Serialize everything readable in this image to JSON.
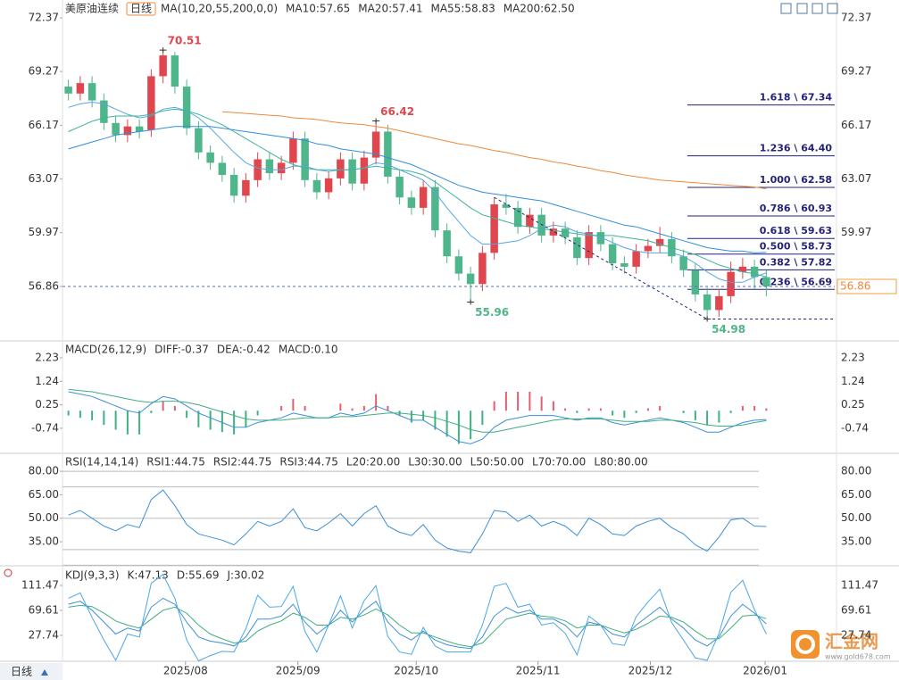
{
  "chart_data": [
    {
      "type": "candlestick",
      "title": "美原油连续",
      "period": "日线",
      "indicator_label": "MA(10,20,55,200,0,0)",
      "xlim": [
        -0.5,
        59.5
      ],
      "xticks": [
        {
          "value": 9.9,
          "label": "2025/08"
        },
        {
          "value": 19.4,
          "label": "2025/09"
        },
        {
          "value": 29.4,
          "label": "2025/10"
        },
        {
          "value": 39.7,
          "label": "2025/11"
        },
        {
          "value": 49.2,
          "label": "2025/12"
        },
        {
          "value": 58.9,
          "label": "2026/01"
        }
      ],
      "ylim": [
        53.82,
        73.4
      ],
      "yticks": [
        72.37,
        69.27,
        66.17,
        63.07,
        59.97,
        56.86
      ],
      "up_color": "#e0464e",
      "down_color": "#4fb58a",
      "open": [
        68.4,
        68.0,
        68.6,
        67.6,
        66.3,
        65.6,
        66.1,
        65.9,
        69.0,
        70.2,
        68.4,
        66.0,
        64.6,
        64.0,
        63.3,
        62.1,
        63.0,
        64.2,
        63.4,
        64.0,
        65.4,
        63.0,
        62.3,
        63.1,
        64.2,
        62.8,
        64.3,
        65.8,
        63.2,
        62.0,
        61.4,
        62.6,
        60.1,
        58.6,
        57.6,
        57.0,
        58.8,
        61.6,
        61.4,
        60.3,
        61.0,
        59.8,
        60.2,
        59.7,
        58.5,
        60.0,
        59.3,
        58.2,
        58.0,
        58.9,
        59.2,
        59.6,
        58.6,
        57.8,
        56.4,
        55.5,
        56.3,
        57.7,
        58.0,
        57.4
      ],
      "high": [
        68.8,
        69.0,
        69.0,
        68.0,
        66.7,
        66.5,
        66.5,
        69.4,
        70.51,
        70.4,
        68.8,
        66.4,
        65.0,
        64.4,
        63.7,
        63.4,
        64.6,
        64.6,
        64.4,
        65.8,
        65.8,
        63.4,
        63.5,
        64.6,
        64.6,
        64.7,
        66.42,
        66.2,
        63.6,
        62.4,
        63.0,
        63.0,
        60.5,
        59.0,
        58.0,
        59.2,
        62.0,
        62.2,
        61.8,
        61.4,
        61.4,
        60.6,
        60.6,
        60.1,
        60.4,
        60.4,
        59.7,
        58.6,
        59.3,
        59.6,
        60.3,
        60.0,
        59.0,
        58.2,
        56.8,
        56.7,
        58.3,
        58.5,
        58.4,
        57.8
      ],
      "low": [
        67.6,
        67.6,
        67.2,
        65.9,
        65.2,
        65.2,
        65.4,
        65.5,
        68.6,
        68.0,
        65.6,
        64.2,
        63.6,
        62.9,
        61.7,
        61.7,
        62.6,
        63.0,
        63.0,
        63.6,
        62.6,
        61.9,
        61.9,
        62.7,
        62.4,
        62.4,
        63.9,
        62.8,
        61.6,
        61.0,
        61.0,
        59.7,
        58.2,
        57.2,
        55.96,
        56.6,
        58.4,
        61.0,
        59.9,
        59.9,
        59.4,
        59.4,
        59.3,
        58.1,
        58.1,
        58.9,
        57.8,
        57.6,
        57.6,
        58.5,
        58.8,
        58.2,
        57.4,
        56.0,
        54.98,
        55.1,
        55.9,
        57.3,
        56.7,
        56.3
      ],
      "close": [
        68.0,
        68.6,
        67.6,
        66.3,
        65.6,
        66.1,
        65.8,
        69.0,
        70.2,
        68.4,
        66.0,
        64.6,
        64.0,
        63.3,
        62.1,
        63.0,
        64.2,
        63.4,
        64.0,
        65.4,
        63.0,
        62.3,
        63.1,
        64.2,
        62.8,
        64.3,
        65.8,
        63.2,
        62.0,
        61.4,
        62.6,
        60.1,
        58.6,
        57.6,
        57.0,
        58.8,
        61.6,
        61.4,
        60.3,
        61.0,
        59.8,
        60.2,
        59.7,
        58.5,
        60.0,
        59.3,
        58.2,
        58.0,
        58.9,
        59.2,
        59.6,
        58.6,
        57.8,
        56.4,
        55.5,
        56.3,
        57.7,
        58.0,
        57.4,
        56.86
      ],
      "series": [
        {
          "name": "MA10:57.65",
          "color": "#58a6e0",
          "values": [
            67.2,
            67.4,
            67.5,
            67.4,
            67.1,
            66.8,
            66.6,
            66.7,
            67.1,
            67.2,
            67.0,
            66.6,
            66.0,
            65.3,
            64.6,
            64.0,
            63.7,
            63.6,
            63.6,
            63.8,
            63.8,
            63.6,
            63.5,
            63.6,
            63.6,
            63.7,
            64.0,
            63.9,
            63.6,
            63.3,
            63.0,
            62.3,
            61.4,
            60.6,
            59.8,
            59.3,
            59.3,
            59.4,
            59.5,
            59.8,
            60.2,
            60.4,
            60.3,
            60.0,
            59.9,
            59.7,
            59.4,
            59.1,
            58.9,
            58.8,
            58.8,
            58.8,
            58.6,
            58.2,
            57.7,
            57.3,
            57.1,
            57.1,
            57.4,
            57.65
          ]
        },
        {
          "name": "MA20:57.41",
          "color": "#3cb39a",
          "values": [
            65.8,
            66.1,
            66.4,
            66.6,
            66.7,
            66.7,
            66.7,
            66.8,
            67.0,
            67.1,
            67.0,
            66.8,
            66.5,
            66.2,
            65.8,
            65.4,
            65.0,
            64.6,
            64.2,
            63.9,
            63.7,
            63.6,
            63.6,
            63.6,
            63.6,
            63.7,
            63.8,
            63.7,
            63.6,
            63.5,
            63.3,
            62.9,
            62.4,
            61.9,
            61.4,
            61.0,
            60.8,
            60.6,
            60.4,
            60.3,
            60.2,
            60.1,
            60.0,
            59.9,
            59.8,
            59.8,
            59.8,
            59.7,
            59.6,
            59.5,
            59.3,
            59.1,
            58.9,
            58.7,
            58.4,
            58.1,
            57.9,
            57.7,
            57.6,
            57.41
          ]
        },
        {
          "name": "MA55:58.83",
          "color": "#2f8fe0",
          "values": [
            64.8,
            65.0,
            65.2,
            65.4,
            65.6,
            65.7,
            65.8,
            65.9,
            66.0,
            66.1,
            66.1,
            66.1,
            66.1,
            66.0,
            65.9,
            65.8,
            65.7,
            65.6,
            65.5,
            65.4,
            65.3,
            65.1,
            65.0,
            64.8,
            64.7,
            64.6,
            64.5,
            64.3,
            64.1,
            63.9,
            63.6,
            63.3,
            63.0,
            62.7,
            62.5,
            62.3,
            62.2,
            62.1,
            62.0,
            61.9,
            61.8,
            61.6,
            61.4,
            61.2,
            61.0,
            60.8,
            60.6,
            60.4,
            60.3,
            60.1,
            59.9,
            59.7,
            59.5,
            59.3,
            59.1,
            59.0,
            58.9,
            58.9,
            58.8,
            58.83
          ]
        },
        {
          "name": "MA200:62.50",
          "color": "#f0883a",
          "values": [
            null,
            null,
            null,
            null,
            null,
            null,
            null,
            null,
            null,
            null,
            null,
            null,
            null,
            66.95,
            66.9,
            66.85,
            66.8,
            66.75,
            66.7,
            66.6,
            66.55,
            66.5,
            66.4,
            66.3,
            66.25,
            66.2,
            66.1,
            66.0,
            65.85,
            65.7,
            65.55,
            65.4,
            65.25,
            65.1,
            65.0,
            64.85,
            64.7,
            64.6,
            64.45,
            64.3,
            64.2,
            64.05,
            63.95,
            63.8,
            63.7,
            63.55,
            63.45,
            63.3,
            63.2,
            63.1,
            63.0,
            62.95,
            62.9,
            62.85,
            62.8,
            62.75,
            62.7,
            62.65,
            62.6,
            62.5
          ]
        }
      ],
      "fib_color": "#23237a",
      "fib_levels": [
        {
          "label": "1.618 \\ 67.34",
          "value": 67.34
        },
        {
          "label": "1.236 \\ 64.40",
          "value": 64.4
        },
        {
          "label": "1.000 \\ 62.58",
          "value": 62.58
        },
        {
          "label": "0.786 \\ 60.93",
          "value": 60.93
        },
        {
          "label": "0.618 \\ 59.63",
          "value": 59.63
        },
        {
          "label": "0.500 \\ 58.73",
          "value": 58.73
        },
        {
          "label": "0.382 \\ 57.82",
          "value": 57.82
        },
        {
          "label": "0.236 \\ 56.69",
          "value": 56.69
        }
      ]
    },
    {
      "type": "macd",
      "title": "MACD(26,12,9)",
      "ylim": [
        -1.76,
        2.87
      ],
      "yticks": [
        2.23,
        1.24,
        0.25,
        -0.74
      ],
      "series": [
        {
          "name": "DIFF:-0.37",
          "color": "#3c8fd8",
          "values": [
            0.8,
            0.7,
            0.6,
            0.4,
            0.2,
            0.0,
            -0.1,
            0.3,
            0.6,
            0.5,
            0.2,
            -0.1,
            -0.3,
            -0.5,
            -0.7,
            -0.7,
            -0.5,
            -0.4,
            -0.3,
            -0.1,
            -0.2,
            -0.3,
            -0.3,
            -0.1,
            -0.2,
            -0.1,
            0.2,
            0.0,
            -0.2,
            -0.4,
            -0.4,
            -0.7,
            -1.0,
            -1.3,
            -1.4,
            -1.2,
            -0.7,
            -0.4,
            -0.3,
            -0.2,
            -0.2,
            -0.2,
            -0.3,
            -0.4,
            -0.3,
            -0.3,
            -0.5,
            -0.6,
            -0.5,
            -0.4,
            -0.3,
            -0.4,
            -0.5,
            -0.7,
            -0.9,
            -0.9,
            -0.7,
            -0.5,
            -0.4,
            -0.37
          ]
        },
        {
          "name": "DEA:-0.42",
          "color": "#3fae7f",
          "values": [
            0.9,
            0.85,
            0.8,
            0.7,
            0.6,
            0.5,
            0.4,
            0.35,
            0.4,
            0.4,
            0.35,
            0.25,
            0.1,
            -0.05,
            -0.2,
            -0.35,
            -0.4,
            -0.4,
            -0.4,
            -0.35,
            -0.3,
            -0.3,
            -0.3,
            -0.25,
            -0.25,
            -0.2,
            -0.15,
            -0.1,
            -0.1,
            -0.15,
            -0.2,
            -0.3,
            -0.45,
            -0.6,
            -0.8,
            -0.9,
            -0.9,
            -0.8,
            -0.7,
            -0.6,
            -0.5,
            -0.4,
            -0.35,
            -0.35,
            -0.35,
            -0.35,
            -0.4,
            -0.45,
            -0.45,
            -0.45,
            -0.4,
            -0.4,
            -0.45,
            -0.5,
            -0.6,
            -0.65,
            -0.65,
            -0.6,
            -0.5,
            -0.42
          ]
        }
      ],
      "histogram": {
        "name": "MACD:0.10",
        "color": "#3c8fd8",
        "up_color": "#e06070",
        "down_color": "#40b080",
        "values": [
          -0.2,
          -0.3,
          -0.4,
          -0.6,
          -0.8,
          -1.0,
          -1.0,
          -0.1,
          0.4,
          0.2,
          -0.3,
          -0.7,
          -0.8,
          -0.9,
          -1.0,
          -0.7,
          -0.2,
          0,
          0.2,
          0.5,
          0.2,
          0,
          0,
          0.3,
          0.1,
          0.2,
          0.7,
          0.2,
          -0.2,
          -0.5,
          -0.4,
          -0.8,
          -1.1,
          -1.4,
          -1.2,
          -0.6,
          0.4,
          0.8,
          0.8,
          0.8,
          0.6,
          0.4,
          0.1,
          -0.1,
          0.1,
          0.1,
          -0.2,
          -0.3,
          -0.1,
          0.1,
          0.2,
          0,
          -0.1,
          -0.4,
          -0.6,
          -0.5,
          -0.1,
          0.2,
          0.2,
          0.1
        ]
      }
    },
    {
      "type": "rsi",
      "title": "RSI(14,14,14)",
      "ylim": [
        20.8,
        90.3
      ],
      "yticks": [
        {
          "value": 80,
          "label": "80.00"
        },
        {
          "value": 65,
          "label": "65.00"
        },
        {
          "value": 50,
          "label": "50.00"
        },
        {
          "value": 35,
          "label": "35.00"
        }
      ],
      "levels": [
        80,
        70,
        50,
        30,
        20
      ],
      "legend": [
        {
          "text": "RSI1:44.75",
          "color": "#3c8fd8"
        },
        {
          "text": "RSI2:44.75",
          "color": "#3cb39a"
        },
        {
          "text": "RSI3:44.75",
          "color": "#2f8fe0"
        },
        {
          "text": "L20:20.00",
          "color": "#aaaaaa"
        },
        {
          "text": "L30:30.00",
          "color": "#aaaaaa"
        },
        {
          "text": "L50:50.00",
          "color": "#aaaaaa"
        },
        {
          "text": "L70:70.00",
          "color": "#aaaaaa"
        },
        {
          "text": "L80:80.00",
          "color": "#aaaaaa"
        }
      ],
      "color": "#3c8fd8",
      "values": [
        52,
        55,
        50,
        45,
        42,
        46,
        44,
        62,
        68,
        58,
        46,
        40,
        38,
        36,
        33,
        40,
        48,
        45,
        48,
        56,
        44,
        42,
        47,
        53,
        45,
        53,
        58,
        45,
        41,
        39,
        46,
        36,
        31,
        29,
        28,
        40,
        55,
        54,
        48,
        52,
        45,
        48,
        45,
        39,
        50,
        46,
        40,
        39,
        45,
        48,
        50,
        44,
        40,
        33,
        29,
        38,
        49,
        50,
        45,
        44.75
      ]
    },
    {
      "type": "kdj",
      "title": "KDJ(9,3,3)",
      "ylim": [
        -14.1,
        141.4
      ],
      "yticks": [
        111.47,
        69.61,
        27.74
      ],
      "series": [
        {
          "name": "K:47.13",
          "color": "#3c8fd8",
          "values": [
            80,
            85,
            70,
            50,
            30,
            40,
            35,
            75,
            90,
            80,
            50,
            25,
            18,
            15,
            10,
            25,
            55,
            55,
            60,
            80,
            50,
            30,
            45,
            70,
            50,
            70,
            85,
            50,
            30,
            20,
            35,
            20,
            12,
            8,
            6,
            25,
            60,
            75,
            65,
            70,
            55,
            55,
            45,
            25,
            50,
            45,
            30,
            25,
            45,
            60,
            75,
            55,
            40,
            20,
            10,
            25,
            60,
            80,
            65,
            47.13
          ]
        },
        {
          "name": "D:55.69",
          "color": "#3fae7f",
          "values": [
            75,
            78,
            76,
            65,
            52,
            45,
            40,
            55,
            70,
            75,
            65,
            45,
            30,
            22,
            15,
            18,
            35,
            45,
            52,
            65,
            58,
            45,
            45,
            58,
            55,
            62,
            72,
            62,
            45,
            32,
            32,
            25,
            18,
            12,
            9,
            15,
            35,
            55,
            60,
            65,
            60,
            58,
            52,
            40,
            45,
            45,
            38,
            32,
            38,
            48,
            60,
            58,
            50,
            35,
            22,
            22,
            40,
            60,
            62,
            55.69
          ]
        },
        {
          "name": "J:30.02",
          "color": "#4aa6e8",
          "values": [
            90,
            99,
            58,
            20,
            -14,
            30,
            25,
            115,
            130,
            90,
            20,
            -15,
            -6,
            1,
            0,
            39,
            95,
            75,
            76,
            110,
            34,
            0,
            45,
            94,
            40,
            86,
            111,
            26,
            0,
            -4,
            41,
            10,
            0,
            0,
            0,
            45,
            110,
            115,
            75,
            80,
            45,
            49,
            31,
            -5,
            60,
            45,
            14,
            11,
            59,
            84,
            105,
            49,
            20,
            -10,
            -14,
            31,
            100,
            120,
            71,
            30.02
          ]
        }
      ]
    }
  ],
  "watermark": {
    "name": "汇金网",
    "url": "www.gold678.com"
  }
}
